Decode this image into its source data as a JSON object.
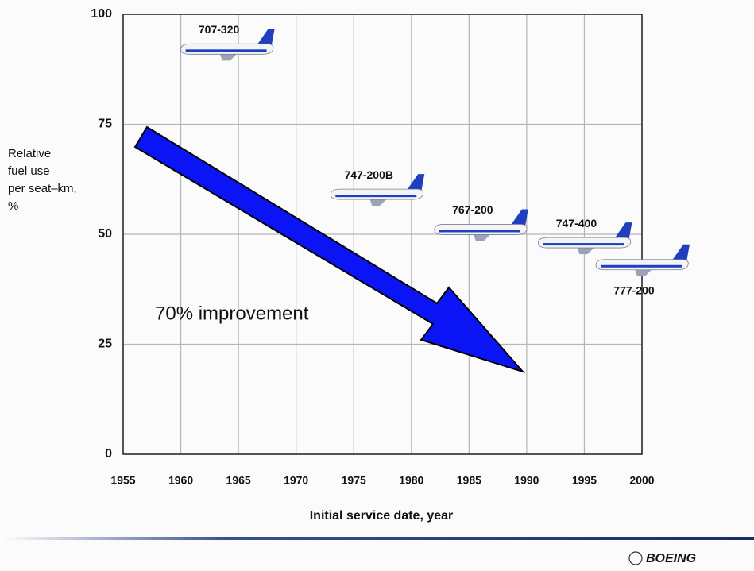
{
  "chart_data": {
    "type": "scatter",
    "ylabel": [
      "Relative",
      "fuel use",
      "per seat–km,",
      "%"
    ],
    "xlabel": "Initial service date, year",
    "annotation": "70% improvement",
    "x": [
      1964,
      1977,
      1986,
      1995,
      2000
    ],
    "values": [
      92,
      59,
      51,
      48,
      43
    ],
    "labels": [
      "707-320",
      "747-200B",
      "767-200",
      "747-400",
      "777-200"
    ],
    "color": "#1f3fbf",
    "xlim": [
      1955,
      2000
    ],
    "xticks": [
      1955,
      1960,
      1965,
      1970,
      1975,
      1980,
      1985,
      1990,
      1995,
      2000
    ],
    "ylim": [
      0,
      100
    ],
    "yticks": [
      0,
      25,
      50,
      75,
      100
    ],
    "grid": true
  },
  "logo": "BOEING"
}
